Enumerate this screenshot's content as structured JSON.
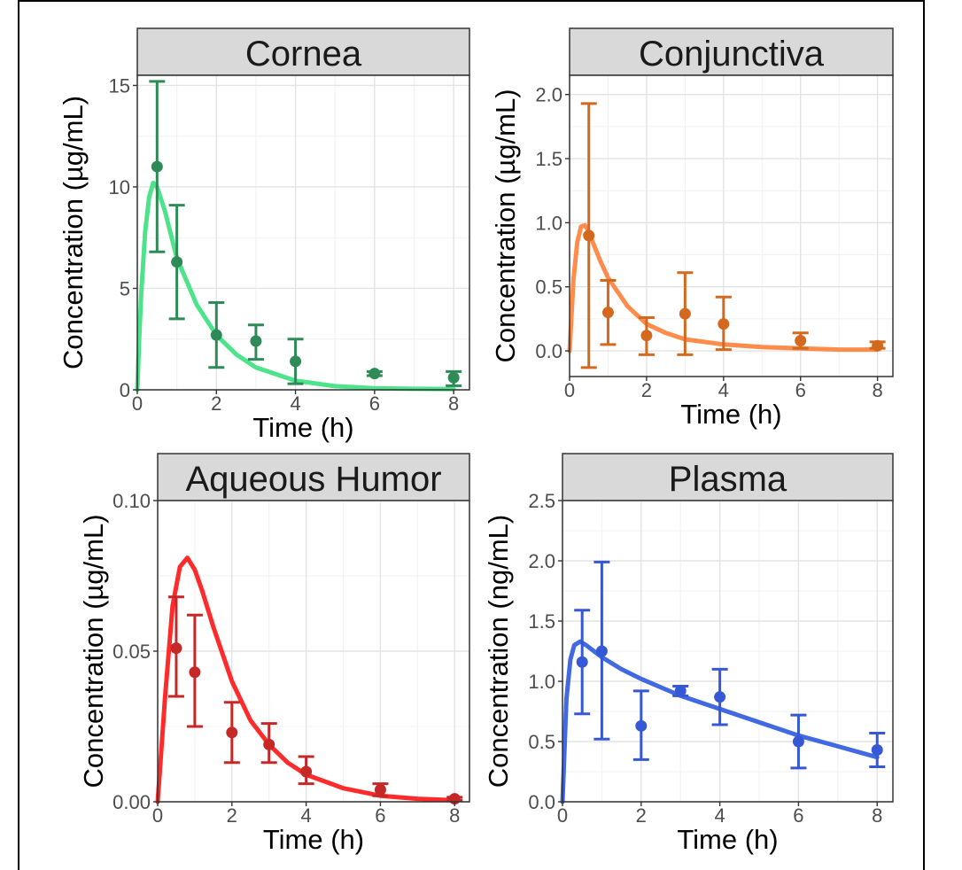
{
  "chart_data": [
    {
      "type": "scatter",
      "title": "Cornea",
      "xlabel": "Time (h)",
      "ylabel": "Concentration (µg/mL)",
      "xlim": [
        0,
        8.4
      ],
      "ylim": [
        0,
        15.5
      ],
      "x_ticks": [
        0,
        2,
        4,
        6,
        8
      ],
      "y_ticks": [
        0,
        5,
        10,
        15
      ],
      "y_tick_labels": [
        "0",
        "5",
        "10",
        "15"
      ],
      "grid": true,
      "color": "#2e8b57",
      "fit_color": "#4de38a",
      "observed": [
        {
          "x": 0.5,
          "y": 11.0,
          "lo": 6.8,
          "hi": 15.2
        },
        {
          "x": 1,
          "y": 6.3,
          "lo": 3.5,
          "hi": 9.1
        },
        {
          "x": 2,
          "y": 2.7,
          "lo": 1.1,
          "hi": 4.3
        },
        {
          "x": 3,
          "y": 2.4,
          "lo": 1.5,
          "hi": 3.2
        },
        {
          "x": 4,
          "y": 1.4,
          "lo": 0.3,
          "hi": 2.5
        },
        {
          "x": 6,
          "y": 0.8,
          "lo": 0.7,
          "hi": 0.9
        },
        {
          "x": 8,
          "y": 0.6,
          "lo": 0.2,
          "hi": 0.9
        }
      ],
      "fit": {
        "x": [
          0,
          0.05,
          0.1,
          0.2,
          0.3,
          0.4,
          0.5,
          0.7,
          1,
          1.5,
          2,
          2.5,
          3,
          4,
          5,
          6,
          7,
          8
        ],
        "y": [
          0,
          2.6,
          4.8,
          7.8,
          9.5,
          10.2,
          10.0,
          8.8,
          6.5,
          4.2,
          2.7,
          1.75,
          1.1,
          0.45,
          0.18,
          0.08,
          0.05,
          0.04
        ]
      }
    },
    {
      "type": "scatter",
      "title": "Conjunctiva",
      "xlabel": "Time (h)",
      "ylabel": "Concentration (µg/mL)",
      "xlim": [
        0,
        8.4
      ],
      "ylim": [
        -0.2,
        2.15
      ],
      "x_ticks": [
        0,
        2,
        4,
        6,
        8
      ],
      "y_ticks": [
        0,
        0.5,
        1.0,
        1.5,
        2.0
      ],
      "y_tick_labels": [
        "0.0",
        "0.5",
        "1.0",
        "1.5",
        "2.0"
      ],
      "grid": true,
      "color": "#d2691e",
      "fit_color": "#ff8c4a",
      "observed": [
        {
          "x": 0.5,
          "y": 0.9,
          "lo": -0.13,
          "hi": 1.93
        },
        {
          "x": 1,
          "y": 0.3,
          "lo": 0.05,
          "hi": 0.55
        },
        {
          "x": 2,
          "y": 0.12,
          "lo": -0.03,
          "hi": 0.26
        },
        {
          "x": 3,
          "y": 0.29,
          "lo": -0.03,
          "hi": 0.61
        },
        {
          "x": 4,
          "y": 0.21,
          "lo": 0.01,
          "hi": 0.42
        },
        {
          "x": 6,
          "y": 0.08,
          "lo": 0.02,
          "hi": 0.14
        },
        {
          "x": 8,
          "y": 0.04,
          "lo": 0.02,
          "hi": 0.07
        }
      ],
      "fit": {
        "x": [
          0,
          0.1,
          0.2,
          0.3,
          0.4,
          0.5,
          0.6,
          0.8,
          1,
          1.5,
          2,
          2.5,
          3,
          4,
          5,
          6,
          7,
          8
        ],
        "y": [
          0,
          0.55,
          0.85,
          0.97,
          0.98,
          0.93,
          0.85,
          0.7,
          0.57,
          0.35,
          0.21,
          0.14,
          0.09,
          0.05,
          0.03,
          0.02,
          0.01,
          0.01
        ]
      }
    },
    {
      "type": "scatter",
      "title": "Aqueous Humor",
      "xlabel": "Time (h)",
      "ylabel": "Concentration (µg/mL)",
      "xlim": [
        0,
        8.4
      ],
      "ylim": [
        0,
        0.1
      ],
      "x_ticks": [
        0,
        2,
        4,
        6,
        8
      ],
      "y_ticks": [
        0,
        0.05,
        0.1
      ],
      "y_tick_labels": [
        "0.00",
        "0.05",
        "0.10"
      ],
      "grid": true,
      "color": "#c62828",
      "fit_color": "#ff2a2a",
      "observed": [
        {
          "x": 0.5,
          "y": 0.051,
          "lo": 0.035,
          "hi": 0.068
        },
        {
          "x": 1,
          "y": 0.043,
          "lo": 0.025,
          "hi": 0.062
        },
        {
          "x": 2,
          "y": 0.023,
          "lo": 0.013,
          "hi": 0.033
        },
        {
          "x": 3,
          "y": 0.019,
          "lo": 0.013,
          "hi": 0.026
        },
        {
          "x": 4,
          "y": 0.01,
          "lo": 0.006,
          "hi": 0.015
        },
        {
          "x": 6,
          "y": 0.004,
          "lo": 0.002,
          "hi": 0.006
        },
        {
          "x": 8,
          "y": 0.001,
          "lo": 0.0005,
          "hi": 0.0015
        }
      ],
      "fit": {
        "x": [
          0,
          0.2,
          0.4,
          0.6,
          0.8,
          1.0,
          1.2,
          1.5,
          2,
          2.5,
          3,
          3.5,
          4,
          5,
          6,
          7,
          8
        ],
        "y": [
          0,
          0.035,
          0.065,
          0.078,
          0.081,
          0.077,
          0.07,
          0.058,
          0.04,
          0.027,
          0.019,
          0.013,
          0.009,
          0.0045,
          0.002,
          0.001,
          0.0005
        ]
      }
    },
    {
      "type": "scatter",
      "title": "Plasma",
      "xlabel": "Time (h)",
      "ylabel": "Concentration (ng/mL)",
      "xlim": [
        0,
        8.4
      ],
      "ylim": [
        0,
        2.5
      ],
      "x_ticks": [
        0,
        2,
        4,
        6,
        8
      ],
      "y_ticks": [
        0,
        0.5,
        1.0,
        1.5,
        2.0,
        2.5
      ],
      "y_tick_labels": [
        "0.0",
        "0.5",
        "1.0",
        "1.5",
        "2.0",
        "2.5"
      ],
      "grid": true,
      "color": "#3658d6",
      "fit_color": "#4169e1",
      "observed": [
        {
          "x": 0.5,
          "y": 1.16,
          "lo": 0.73,
          "hi": 1.59
        },
        {
          "x": 1,
          "y": 1.25,
          "lo": 0.52,
          "hi": 1.99
        },
        {
          "x": 2,
          "y": 0.63,
          "lo": 0.35,
          "hi": 0.92
        },
        {
          "x": 3,
          "y": 0.92,
          "lo": 0.88,
          "hi": 0.96
        },
        {
          "x": 4,
          "y": 0.87,
          "lo": 0.64,
          "hi": 1.1
        },
        {
          "x": 6,
          "y": 0.5,
          "lo": 0.28,
          "hi": 0.72
        },
        {
          "x": 8,
          "y": 0.43,
          "lo": 0.29,
          "hi": 0.57
        }
      ],
      "fit": {
        "x": [
          0,
          0.1,
          0.2,
          0.3,
          0.45,
          0.6,
          0.8,
          1,
          1.5,
          2,
          3,
          4,
          5,
          6,
          7,
          8
        ],
        "y": [
          0,
          0.85,
          1.18,
          1.3,
          1.33,
          1.3,
          1.25,
          1.2,
          1.1,
          1.02,
          0.88,
          0.77,
          0.66,
          0.55,
          0.46,
          0.37
        ]
      }
    }
  ]
}
